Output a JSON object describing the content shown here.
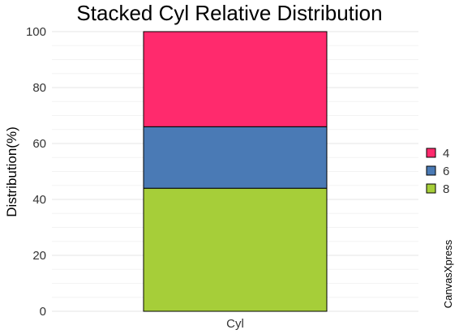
{
  "chart_data": {
    "type": "bar",
    "stacked": true,
    "title": "Stacked Cyl Relative Distribution",
    "xlabel": "",
    "ylabel": "Distribution(%)",
    "categories": [
      "Cyl"
    ],
    "ylim": [
      0,
      100
    ],
    "yticks": [
      0,
      20,
      40,
      60,
      80,
      100
    ],
    "series": [
      {
        "name": "8",
        "values": [
          44
        ],
        "color": "#a6ce39"
      },
      {
        "name": "6",
        "values": [
          22
        ],
        "color": "#4a7ab5"
      },
      {
        "name": "4",
        "values": [
          34
        ],
        "color": "#ff2a6d"
      }
    ],
    "legend_order": [
      "4",
      "6",
      "8"
    ],
    "legend_position": "right",
    "grid": true,
    "watermark": "CanvasXpress"
  }
}
